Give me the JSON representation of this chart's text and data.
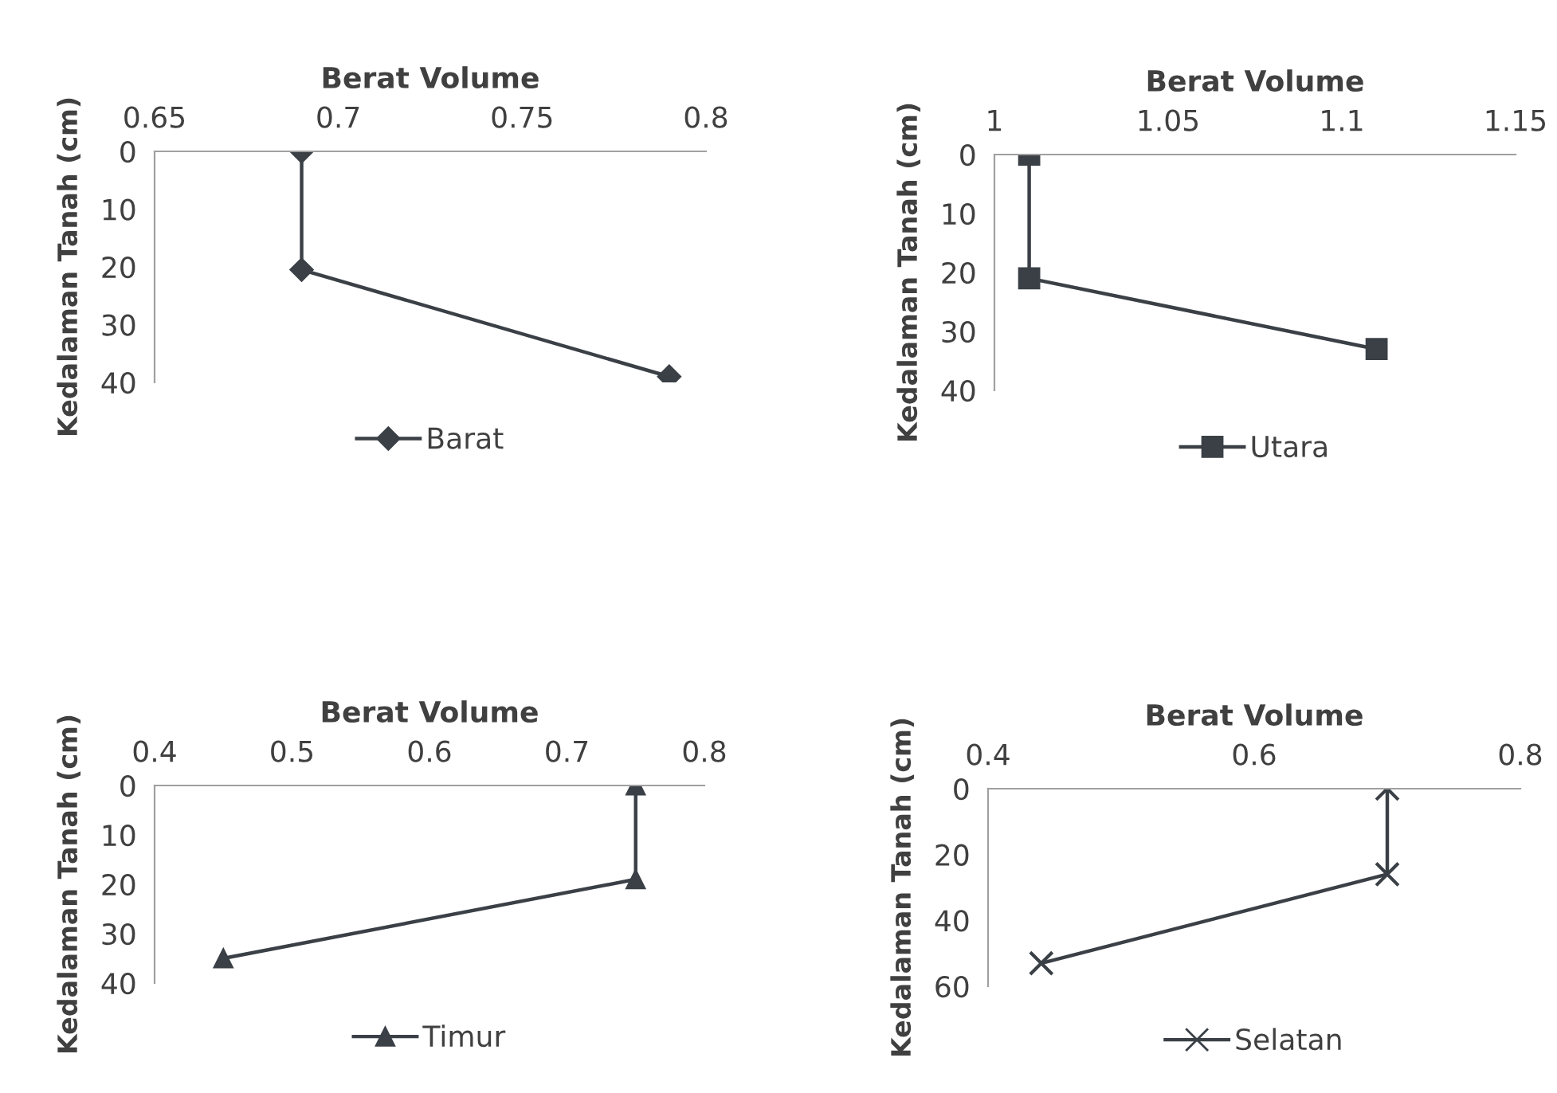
{
  "chart_data": [
    {
      "type": "line",
      "xlabel": "Berat Volume",
      "ylabel": "Kedalaman Tanah (cm)",
      "x": [
        0.69,
        0.69,
        0.79
      ],
      "xlim": [
        0.65,
        0.8
      ],
      "xticks": [
        0.65,
        0.7,
        0.75,
        0.8
      ],
      "ylim": [
        40,
        0
      ],
      "yticks": [
        0,
        10,
        20,
        30,
        40
      ],
      "marker": "diamond",
      "legend": "bottom",
      "series": [
        {
          "name": "Barat",
          "color": "#3a4046",
          "values": [
            0,
            20.5,
            39
          ]
        }
      ]
    },
    {
      "type": "line",
      "xlabel": "Berat Volume",
      "ylabel": "Kedalaman Tanah (cm)",
      "x": [
        1.01,
        1.01,
        1.11
      ],
      "xlim": [
        1,
        1.15
      ],
      "xticks": [
        1,
        1.05,
        1.1,
        1.15
      ],
      "ylim": [
        40,
        0
      ],
      "yticks": [
        0,
        10,
        20,
        30,
        40
      ],
      "marker": "square",
      "legend": "bottom",
      "series": [
        {
          "name": "Utara",
          "color": "#3a4046",
          "values": [
            0,
            21,
            33
          ]
        }
      ]
    },
    {
      "type": "line",
      "xlabel": "Berat Volume",
      "ylabel": "Kedalaman Tanah (cm)",
      "x": [
        0.75,
        0.75,
        0.45
      ],
      "xlim": [
        0.4,
        0.8
      ],
      "xticks": [
        0.4,
        0.5,
        0.6,
        0.7,
        0.8
      ],
      "ylim": [
        40,
        0
      ],
      "yticks": [
        0,
        10,
        20,
        30,
        40
      ],
      "marker": "triangle",
      "legend": "bottom",
      "series": [
        {
          "name": "Timur",
          "color": "#3a4046",
          "values": [
            0,
            19,
            35
          ]
        }
      ]
    },
    {
      "type": "line",
      "xlabel": "Berat Volume",
      "ylabel": "Kedalaman Tanah (cm)",
      "x": [
        0.7,
        0.7,
        0.44
      ],
      "xlim": [
        0.4,
        0.8
      ],
      "xticks": [
        0.4,
        0.6,
        0.8
      ],
      "ylim": [
        60,
        0
      ],
      "yticks": [
        0,
        20,
        40,
        60
      ],
      "marker": "cross",
      "legend": "bottom",
      "series": [
        {
          "name": "Selatan",
          "color": "#3a4046",
          "values": [
            0,
            26,
            53
          ]
        }
      ]
    }
  ]
}
